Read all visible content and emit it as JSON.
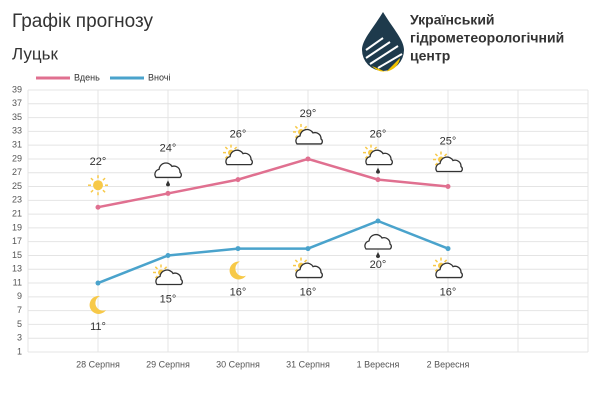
{
  "header": {
    "title": "Графік прогнозу",
    "subtitle": "Луцьк",
    "logo_lines": [
      "Український",
      "гідрометеорологічний",
      "центр"
    ]
  },
  "chart_data": {
    "type": "line",
    "categories": [
      "28 Серпня",
      "29 Серпня",
      "30 Серпня",
      "31 Серпня",
      "1 Вересня",
      "2 Вересня"
    ],
    "series": [
      {
        "name": "Вдень",
        "color": "#e07090",
        "values": [
          22,
          24,
          26,
          29,
          26,
          25
        ],
        "value_labels": [
          "22°",
          "24°",
          "26°",
          "29°",
          "26°",
          "25°"
        ]
      },
      {
        "name": "Вночі",
        "color": "#4aa3cc",
        "values": [
          11,
          15,
          16,
          16,
          20,
          16
        ],
        "value_labels": [
          "11°",
          "15°",
          "16°",
          "16°",
          "20°",
          "16°"
        ]
      }
    ],
    "ylim": [
      1,
      39
    ],
    "yticks": [
      1,
      3,
      5,
      7,
      9,
      11,
      13,
      15,
      17,
      19,
      21,
      23,
      25,
      27,
      29,
      31,
      33,
      35,
      37,
      39
    ],
    "grid": true,
    "legend": "top-left"
  }
}
